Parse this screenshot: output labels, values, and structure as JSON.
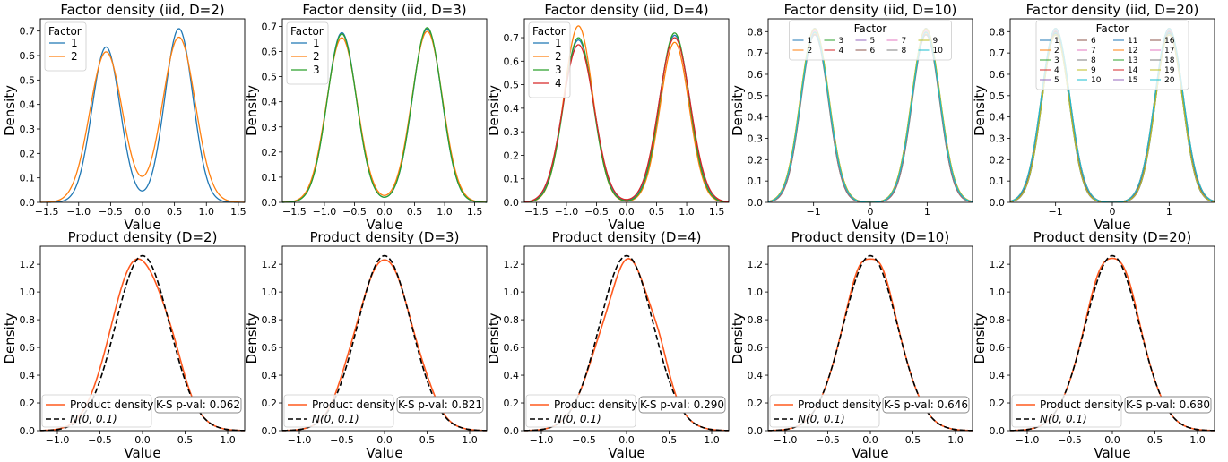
{
  "colors": {
    "tab10": [
      "#1f77b4",
      "#ff7f0e",
      "#2ca02c",
      "#d62728",
      "#9467bd",
      "#8c564b",
      "#e377c2",
      "#7f7f7f",
      "#bcbd22",
      "#17becf"
    ],
    "product": "#ff5a1f",
    "normal": "#000000"
  },
  "chart_data": [
    {
      "type": "line",
      "title": "Factor density (iid, D=2)",
      "xlabel": "Value",
      "ylabel": "Density",
      "xlim": [
        -1.6,
        1.6
      ],
      "ylim": [
        0,
        0.75
      ],
      "xticks": [
        -1.5,
        -1.0,
        -0.5,
        0.0,
        0.5,
        1.0,
        1.5
      ],
      "xtick_labels": [
        "−1.5",
        "−1.0",
        "−0.5",
        "0.0",
        "0.5",
        "1.0",
        "1.5"
      ],
      "yticks": [
        0,
        0.1,
        0.2,
        0.3,
        0.4,
        0.5,
        0.6,
        0.7
      ],
      "ytick_labels": [
        "0.0",
        "0.1",
        "0.2",
        "0.3",
        "0.4",
        "0.5",
        "0.6",
        "0.7"
      ],
      "legend_title": "Factor",
      "legend_position": "top-left",
      "legend_columns": 1,
      "legend_entries": [
        "1",
        "2"
      ],
      "series": [
        {
          "name": "1",
          "mu": 0.57,
          "sigma": 0.22,
          "left_peak": 0.635,
          "right_peak": 0.71
        },
        {
          "name": "2",
          "mu": 0.57,
          "sigma": 0.255,
          "left_peak": 0.615,
          "right_peak": 0.675
        }
      ]
    },
    {
      "type": "line",
      "title": "Factor density (iid, D=3)",
      "xlabel": "Value",
      "ylabel": "Density",
      "xlim": [
        -1.7,
        1.7
      ],
      "ylim": [
        0,
        0.73
      ],
      "xticks": [
        -1.5,
        -1.0,
        -0.5,
        0.0,
        0.5,
        1.0,
        1.5
      ],
      "xtick_labels": [
        "−1.5",
        "−1.0",
        "−0.5",
        "0.0",
        "0.5",
        "1.0",
        "1.5"
      ],
      "yticks": [
        0,
        0.1,
        0.2,
        0.3,
        0.4,
        0.5,
        0.6,
        0.7
      ],
      "ytick_labels": [
        "0.0",
        "0.1",
        "0.2",
        "0.3",
        "0.4",
        "0.5",
        "0.6",
        "0.7"
      ],
      "legend_title": "Factor",
      "legend_position": "top-left",
      "legend_columns": 1,
      "legend_entries": [
        "1",
        "2",
        "3"
      ],
      "series": [
        {
          "name": "1",
          "mu": 0.71,
          "sigma": 0.245,
          "left_peak": 0.675,
          "right_peak": 0.69
        },
        {
          "name": "2",
          "mu": 0.71,
          "sigma": 0.255,
          "left_peak": 0.655,
          "right_peak": 0.68
        },
        {
          "name": "3",
          "mu": 0.71,
          "sigma": 0.245,
          "left_peak": 0.67,
          "right_peak": 0.695
        }
      ]
    },
    {
      "type": "line",
      "title": "Factor density (iid, D=4)",
      "xlabel": "Value",
      "ylabel": "Density",
      "xlim": [
        -1.7,
        1.7
      ],
      "ylim": [
        0,
        0.78
      ],
      "xticks": [
        -1.5,
        -1.0,
        -0.5,
        0.0,
        0.5,
        1.0,
        1.5
      ],
      "xtick_labels": [
        "−1.5",
        "−1.0",
        "−0.5",
        "0.0",
        "0.5",
        "1.0",
        "1.5"
      ],
      "yticks": [
        0,
        0.1,
        0.2,
        0.3,
        0.4,
        0.5,
        0.6,
        0.7
      ],
      "ytick_labels": [
        "0.0",
        "0.1",
        "0.2",
        "0.3",
        "0.4",
        "0.5",
        "0.6",
        "0.7"
      ],
      "legend_title": "Factor",
      "legend_position": "top-left",
      "legend_columns": 1,
      "legend_entries": [
        "1",
        "2",
        "3",
        "4"
      ],
      "series": [
        {
          "name": "1",
          "mu": 0.8,
          "sigma": 0.255,
          "left_peak": 0.69,
          "right_peak": 0.71
        },
        {
          "name": "2",
          "mu": 0.8,
          "sigma": 0.24,
          "left_peak": 0.75,
          "right_peak": 0.68
        },
        {
          "name": "3",
          "mu": 0.8,
          "sigma": 0.245,
          "left_peak": 0.7,
          "right_peak": 0.72
        },
        {
          "name": "4",
          "mu": 0.8,
          "sigma": 0.26,
          "left_peak": 0.67,
          "right_peak": 0.7
        }
      ]
    },
    {
      "type": "line",
      "title": "Factor density (iid, D=10)",
      "xlabel": "Value",
      "ylabel": "Density",
      "xlim": [
        -1.8,
        1.8
      ],
      "ylim": [
        0,
        0.86
      ],
      "xticks": [
        -1,
        0,
        1
      ],
      "xtick_labels": [
        "−1",
        "0",
        "1"
      ],
      "yticks": [
        0,
        0.1,
        0.2,
        0.3,
        0.4,
        0.5,
        0.6,
        0.7,
        0.8
      ],
      "ytick_labels": [
        "0.0",
        "0.1",
        "0.2",
        "0.3",
        "0.4",
        "0.5",
        "0.6",
        "0.7",
        "0.8"
      ],
      "legend_title": "Factor",
      "legend_position": "top-center",
      "legend_columns": 5,
      "legend_entries": [
        "1",
        "2",
        "3",
        "4",
        "5",
        "6",
        "7",
        "8",
        "9",
        "10"
      ],
      "series_count": 10,
      "mu": 0.98,
      "sigma": 0.245,
      "peak": 0.8
    },
    {
      "type": "line",
      "title": "Factor density (iid, D=20)",
      "xlabel": "Value",
      "ylabel": "Density",
      "xlim": [
        -1.8,
        1.8
      ],
      "ylim": [
        0,
        0.86
      ],
      "xticks": [
        -1,
        0,
        1
      ],
      "xtick_labels": [
        "−1",
        "0",
        "1"
      ],
      "yticks": [
        0,
        0.1,
        0.2,
        0.3,
        0.4,
        0.5,
        0.6,
        0.7,
        0.8
      ],
      "ytick_labels": [
        "0.0",
        "0.1",
        "0.2",
        "0.3",
        "0.4",
        "0.5",
        "0.6",
        "0.7",
        "0.8"
      ],
      "legend_title": "Factor",
      "legend_position": "top-center",
      "legend_columns": 4,
      "legend_entries": [
        "1",
        "2",
        "3",
        "4",
        "5",
        "6",
        "7",
        "8",
        "9",
        "10",
        "11",
        "12",
        "13",
        "14",
        "15",
        "16",
        "17",
        "18",
        "19",
        "20"
      ],
      "series_count": 20,
      "mu": 1.0,
      "sigma": 0.245,
      "peak": 0.8
    },
    {
      "type": "line",
      "title": "Product density (D=2)",
      "xlabel": "Value",
      "ylabel": "Density",
      "xlim": [
        -1.2,
        1.2
      ],
      "ylim": [
        0,
        1.33
      ],
      "xticks": [
        -1.0,
        -0.5,
        0.0,
        0.5,
        1.0
      ],
      "xtick_labels": [
        "−1.0",
        "−0.5",
        "0.0",
        "0.5",
        "1.0"
      ],
      "yticks": [
        0,
        0.2,
        0.4,
        0.6,
        0.8,
        1.0,
        1.2
      ],
      "ytick_labels": [
        "0.0",
        "0.2",
        "0.4",
        "0.6",
        "0.8",
        "1.0",
        "1.2"
      ],
      "legend_entries": [
        "Product density",
        "N(0, 0.1)"
      ],
      "legend_position": "bottom-left",
      "ks_pval": "K-S p-val: 0.062",
      "product_bumps": [
        [
          -0.3,
          0.12,
          0.25
        ],
        [
          0.05,
          -0.1,
          0.15
        ],
        [
          0.4,
          0.05,
          0.1
        ]
      ]
    },
    {
      "type": "line",
      "title": "Product density (D=3)",
      "xlabel": "Value",
      "ylabel": "Density",
      "xlim": [
        -1.2,
        1.2
      ],
      "ylim": [
        0,
        1.33
      ],
      "xticks": [
        -1.0,
        -0.5,
        0.0,
        0.5,
        1.0
      ],
      "xtick_labels": [
        "−1.0",
        "−0.5",
        "0.0",
        "0.5",
        "1.0"
      ],
      "yticks": [
        0,
        0.2,
        0.4,
        0.6,
        0.8,
        1.0,
        1.2
      ],
      "ytick_labels": [
        "0.0",
        "0.2",
        "0.4",
        "0.6",
        "0.8",
        "1.0",
        "1.2"
      ],
      "legend_entries": [
        "Product density",
        "N(0, 0.1)"
      ],
      "legend_position": "bottom-left",
      "ks_pval": "K-S p-val: 0.821",
      "product_bumps": [
        [
          -0.45,
          0.05,
          0.12
        ],
        [
          0.0,
          -0.03,
          0.1
        ],
        [
          0.5,
          0.04,
          0.12
        ]
      ]
    },
    {
      "type": "line",
      "title": "Product density (D=4)",
      "xlabel": "Value",
      "ylabel": "Density",
      "xlim": [
        -1.2,
        1.2
      ],
      "ylim": [
        0,
        1.33
      ],
      "xticks": [
        -1.0,
        -0.5,
        0.0,
        0.5,
        1.0
      ],
      "xtick_labels": [
        "−1.0",
        "−0.5",
        "0.0",
        "0.5",
        "1.0"
      ],
      "yticks": [
        0,
        0.2,
        0.4,
        0.6,
        0.8,
        1.0,
        1.2
      ],
      "ytick_labels": [
        "0.0",
        "0.2",
        "0.4",
        "0.6",
        "0.8",
        "1.0",
        "1.2"
      ],
      "legend_entries": [
        "Product density",
        "N(0, 0.1)"
      ],
      "legend_position": "bottom-left",
      "ks_pval": "K-S p-val: 0.290",
      "product_bumps": [
        [
          -0.2,
          -0.1,
          0.12
        ],
        [
          0.4,
          0.1,
          0.1
        ]
      ]
    },
    {
      "type": "line",
      "title": "Product density (D=10)",
      "xlabel": "Value",
      "ylabel": "Density",
      "xlim": [
        -1.2,
        1.2
      ],
      "ylim": [
        0,
        1.33
      ],
      "xticks": [
        -1.0,
        -0.5,
        0.0,
        0.5,
        1.0
      ],
      "xtick_labels": [
        "−1.0",
        "−0.5",
        "0.0",
        "0.5",
        "1.0"
      ],
      "yticks": [
        0,
        0.2,
        0.4,
        0.6,
        0.8,
        1.0,
        1.2
      ],
      "ytick_labels": [
        "0.0",
        "0.2",
        "0.4",
        "0.6",
        "0.8",
        "1.0",
        "1.2"
      ],
      "legend_entries": [
        "Product density",
        "N(0, 0.1)"
      ],
      "legend_position": "bottom-left",
      "ks_pval": "K-S p-val: 0.646",
      "product_bumps": [
        [
          -0.15,
          0.04,
          0.1
        ],
        [
          0.0,
          -0.05,
          0.08
        ],
        [
          0.15,
          0.04,
          0.1
        ]
      ]
    },
    {
      "type": "line",
      "title": "Product density (D=20)",
      "xlabel": "Value",
      "ylabel": "Density",
      "xlim": [
        -1.2,
        1.2
      ],
      "ylim": [
        0,
        1.33
      ],
      "xticks": [
        -1.0,
        -0.5,
        0.0,
        0.5,
        1.0
      ],
      "xtick_labels": [
        "−1.0",
        "−0.5",
        "0.0",
        "0.5",
        "1.0"
      ],
      "yticks": [
        0,
        0.2,
        0.4,
        0.6,
        0.8,
        1.0,
        1.2
      ],
      "ytick_labels": [
        "0.0",
        "0.2",
        "0.4",
        "0.6",
        "0.8",
        "1.0",
        "1.2"
      ],
      "legend_entries": [
        "Product density",
        "N(0, 0.1)"
      ],
      "legend_position": "bottom-left",
      "ks_pval": "K-S p-val: 0.680",
      "product_bumps": [
        [
          -0.2,
          0.04,
          0.1
        ],
        [
          0.0,
          -0.03,
          0.08
        ],
        [
          0.2,
          0.04,
          0.1
        ]
      ]
    }
  ]
}
